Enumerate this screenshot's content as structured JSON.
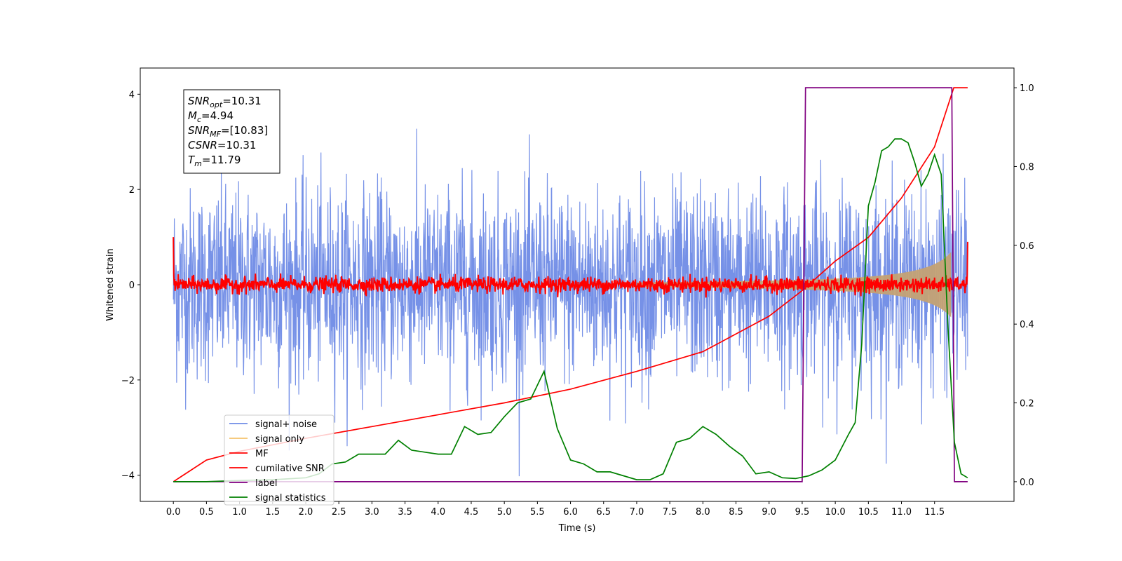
{
  "chart_data": {
    "type": "line",
    "xlabel": "Time (s)",
    "ylabel_left": "Whitened strain",
    "ylabel_right": "",
    "xlim": [
      -0.5,
      12.7
    ],
    "ylim_left": [
      -4.55,
      4.55
    ],
    "ylim_right": [
      -0.05,
      1.05
    ],
    "x_ticks": [
      "0.0",
      "0.5",
      "1.0",
      "1.5",
      "2.0",
      "2.5",
      "3.0",
      "3.5",
      "4.0",
      "4.5",
      "5.0",
      "5.5",
      "6.0",
      "6.5",
      "7.0",
      "7.5",
      "8.0",
      "8.5",
      "9.0",
      "9.5",
      "10.0",
      "10.5",
      "11.0",
      "11.5"
    ],
    "y_ticks_left": [
      "4",
      "2",
      "0",
      "−2",
      "−4"
    ],
    "y_ticks_right": [
      "1.0",
      "0.8",
      "0.6",
      "0.4",
      "0.2",
      "0.0"
    ],
    "grid": false,
    "legend_position": "lower-left",
    "annotation": {
      "lines": [
        {
          "base": "SNR",
          "sub": "opt",
          "value": "=10.31"
        },
        {
          "base": "M",
          "sub": "c",
          "value": "=4.94"
        },
        {
          "base": "SNR",
          "sub": "MF",
          "value": "=[10.83]"
        },
        {
          "base": "CSNR",
          "sub": "",
          "value": "=10.31"
        },
        {
          "base": "T",
          "sub": "m",
          "value": "=11.79"
        }
      ]
    },
    "series": [
      {
        "name": "signal+ noise",
        "color": "#6f8be6",
        "axis": "left",
        "description": "whitened noisy strain, std about 1, range about -4 to 4",
        "t_range": [
          0,
          12
        ]
      },
      {
        "name": "signal only",
        "color": "#f5c26b",
        "axis": "left",
        "description": "chirp signal, amplitude grows from about 0.05 at 9.5 s to 0.75 at 11.79 s",
        "t_merger": 11.79
      },
      {
        "name": "MF",
        "color": "#ff0000",
        "axis": "left",
        "description": "matched filter output, noise about 0.08, spike 1.0 at t=0 and 0.9 at t=12"
      },
      {
        "name": "cumilative SNR",
        "color": "#ff0000",
        "axis": "right",
        "x": [
          0.0,
          0.5,
          1.0,
          2.0,
          3.0,
          4.0,
          5.0,
          6.0,
          7.0,
          8.0,
          9.0,
          9.5,
          10.0,
          10.5,
          11.0,
          11.5,
          11.79,
          12.0
        ],
        "y": [
          0.0,
          0.055,
          0.077,
          0.11,
          0.14,
          0.17,
          0.2,
          0.235,
          0.28,
          0.33,
          0.42,
          0.485,
          0.56,
          0.62,
          0.72,
          0.85,
          1.0,
          1.0
        ]
      },
      {
        "name": "label",
        "color": "#800080",
        "axis": "right",
        "x": [
          0.0,
          9.5,
          9.55,
          11.76,
          11.8,
          12.0
        ],
        "y": [
          0.0,
          0.0,
          1.0,
          1.0,
          0.0,
          0.0
        ]
      },
      {
        "name": "signal statistics",
        "color": "#008000",
        "axis": "right",
        "x": [
          0.0,
          0.5,
          1.0,
          1.5,
          2.0,
          2.2,
          2.4,
          2.6,
          2.8,
          3.0,
          3.2,
          3.4,
          3.6,
          3.8,
          4.0,
          4.2,
          4.4,
          4.6,
          4.8,
          5.0,
          5.2,
          5.4,
          5.6,
          5.8,
          6.0,
          6.2,
          6.4,
          6.6,
          6.8,
          7.0,
          7.2,
          7.4,
          7.6,
          7.8,
          8.0,
          8.2,
          8.4,
          8.6,
          8.8,
          9.0,
          9.2,
          9.4,
          9.6,
          9.8,
          10.0,
          10.2,
          10.3,
          10.4,
          10.5,
          10.6,
          10.7,
          10.8,
          10.9,
          11.0,
          11.1,
          11.2,
          11.3,
          11.4,
          11.5,
          11.6,
          11.7,
          11.8,
          11.9,
          12.0
        ],
        "y": [
          0.0,
          0.0,
          0.003,
          0.005,
          0.01,
          0.02,
          0.045,
          0.05,
          0.07,
          0.07,
          0.07,
          0.105,
          0.08,
          0.075,
          0.07,
          0.07,
          0.14,
          0.12,
          0.125,
          0.165,
          0.2,
          0.21,
          0.28,
          0.135,
          0.055,
          0.045,
          0.025,
          0.025,
          0.015,
          0.005,
          0.005,
          0.02,
          0.1,
          0.11,
          0.14,
          0.12,
          0.09,
          0.065,
          0.02,
          0.025,
          0.01,
          0.008,
          0.015,
          0.03,
          0.055,
          0.12,
          0.15,
          0.35,
          0.7,
          0.76,
          0.84,
          0.85,
          0.87,
          0.87,
          0.86,
          0.81,
          0.75,
          0.78,
          0.83,
          0.78,
          0.4,
          0.1,
          0.02,
          0.01
        ]
      }
    ]
  }
}
